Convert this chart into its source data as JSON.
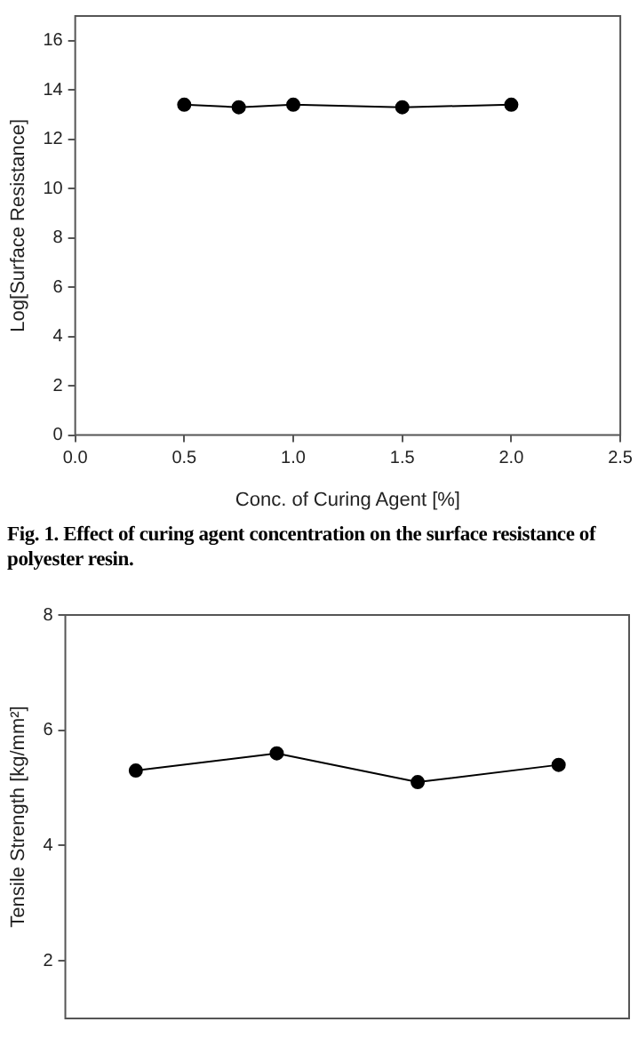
{
  "chart_data": [
    {
      "type": "line",
      "xlabel": "Conc. of Curing Agent [%]",
      "ylabel": "Log[Surface Resistance]",
      "x": [
        0.5,
        0.75,
        1.0,
        1.5,
        2.0
      ],
      "values": [
        13.4,
        13.3,
        13.4,
        13.3,
        13.4
      ],
      "color": "#000000",
      "marker": "circle",
      "xlim": [
        0,
        2.5
      ],
      "xticks": [
        {
          "value": 0,
          "label": "0.0"
        },
        {
          "value": 0.5,
          "label": "0.5"
        },
        {
          "value": 1,
          "label": "1.0"
        },
        {
          "value": 1.5,
          "label": "1.5"
        },
        {
          "value": 2,
          "label": "2.0"
        },
        {
          "value": 2.5,
          "label": "2.5"
        }
      ],
      "ylim": [
        0,
        17
      ],
      "yticks": [
        0,
        2,
        4,
        6,
        8,
        10,
        12,
        14,
        16
      ],
      "annotations": [
        "Fig. 1. Effect of curing agent concentration on the surface resistance of polyester resin."
      ]
    },
    {
      "type": "line",
      "ylabel": "Tensile Strength [kg/mm²]",
      "categories": [
        null,
        null,
        null,
        null
      ],
      "values": [
        5.3,
        5.6,
        5.1,
        5.4
      ],
      "color": "#000000",
      "marker": "circle",
      "ylim": [
        1,
        8
      ],
      "yticks": [
        2,
        4,
        6,
        8
      ],
      "tick_labels": "y"
    }
  ]
}
